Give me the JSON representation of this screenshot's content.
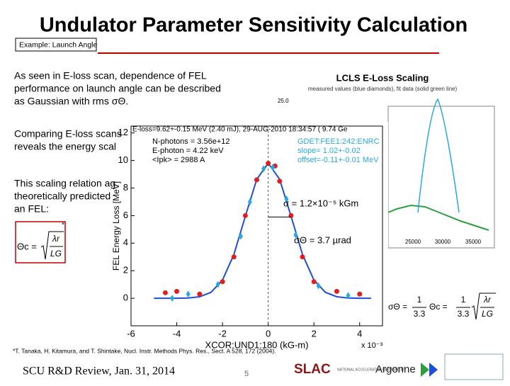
{
  "header": {
    "title": "Undulator Parameter Sensitivity Calculation",
    "tag": "Example: Launch Angle"
  },
  "body": {
    "paragraphs": [
      [
        "As seen in E-loss scan, dependence of FEL",
        "performance on launch angle can be described",
        "as Gaussian with rms σΘ."
      ],
      [
        "Comparing E-loss scans",
        "reveals the energy scal"
      ],
      [
        "This scaling relation ag",
        "theoretically predicted",
        "an FEL:"
      ]
    ],
    "asterisk": "*",
    "formula_left": {
      "lhs": "Θc =",
      "num": "λr",
      "den": "LG"
    },
    "formula_right": {
      "lhs": "σΘ =",
      "num1": "1",
      "den1": "3.3",
      "mid": "Θc =",
      "num2": "1",
      "den2": "3.3",
      "num3": "λr",
      "den3": "LG"
    }
  },
  "background_plot": {
    "title": "LCLS E-Loss Scaling",
    "subtitle": "measured values (blue diamonds), fit data (solid green line)",
    "y_label": "25.0",
    "x_labels": [
      "25000",
      "30000",
      "35000"
    ]
  },
  "chart_data": {
    "type": "scatter",
    "y_label": "FEL Energy Loss [MeV]",
    "x_label": "XCOR:UND1:180 (kG-m)",
    "x_scale_label": "x 10⁻³",
    "annotations": [
      "E-loss=9.62+-0.15 MeV (2.40 mJ), 29-AUG-2010 18:34:57 ( 9.74 Ge",
      "N-photons = 3.56e+12",
      "E-photon = 4.22 keV",
      "<Ipk> = 2988 A",
      "GDET:FEE1:242:ENRC",
      "slope= 1.02+-0.02",
      "offset=-0.11+-0.01 MeV",
      "σ = 1.2×10⁻⁵ kGm",
      "σΘ = 3.7 µrad"
    ],
    "xlim": [
      -6,
      5
    ],
    "ylim": [
      -2,
      12.5
    ],
    "xticks": [
      -6,
      -4,
      -2,
      0,
      2,
      4
    ],
    "yticks": [
      0,
      2,
      4,
      6,
      8,
      10,
      12
    ],
    "series": [
      {
        "color": "#1f4fd8",
        "kind": "line",
        "x": [
          -5,
          -4.5,
          -4,
          -3.5,
          -3,
          -2.5,
          -2,
          -1.5,
          -1,
          -0.5,
          0,
          0.5,
          1,
          1.5,
          2,
          2.5,
          3,
          3.5,
          4,
          4.5
        ],
        "values": [
          0,
          0,
          0,
          0.02,
          0.11,
          0.43,
          1.32,
          3.18,
          5.95,
          8.64,
          9.8,
          8.64,
          5.95,
          3.18,
          1.32,
          0.43,
          0.11,
          0.02,
          0,
          0
        ]
      },
      {
        "color": "#e02020",
        "kind": "dot",
        "x": [
          -4.5,
          -4,
          -3,
          -2,
          -1.5,
          -1,
          -0.5,
          0,
          0.3,
          0.5,
          1,
          1.5,
          2,
          3,
          4
        ],
        "values": [
          0.4,
          0.5,
          0.3,
          1.2,
          3,
          6,
          8.6,
          9.8,
          9.6,
          8.5,
          6,
          3,
          1.2,
          0.5,
          0.3
        ]
      },
      {
        "color": "#29a8e0",
        "kind": "diamond",
        "x": [
          -4.2,
          -3.5,
          -2.2,
          -1.2,
          -0.8,
          -0.2,
          0.2,
          0.8,
          1.2,
          2.2,
          3.5
        ],
        "values": [
          0,
          0.3,
          1,
          4.5,
          7,
          9.4,
          9.5,
          7.2,
          4.6,
          0.9,
          0.2
        ]
      }
    ]
  },
  "footer": {
    "footnote": "*T. Tanaka, H. Kitamura, and T. Shintake, Nucl. Instr. Methods Phys. Res., Sect. A 528, 172 (2004).",
    "left": "SCU R&D Review,  Jan. 31, 2014",
    "page": "5",
    "slac": "SLAC",
    "slac_sub": "NATIONAL ACCELERATOR LABORATORY",
    "argonne": "Argonne"
  }
}
